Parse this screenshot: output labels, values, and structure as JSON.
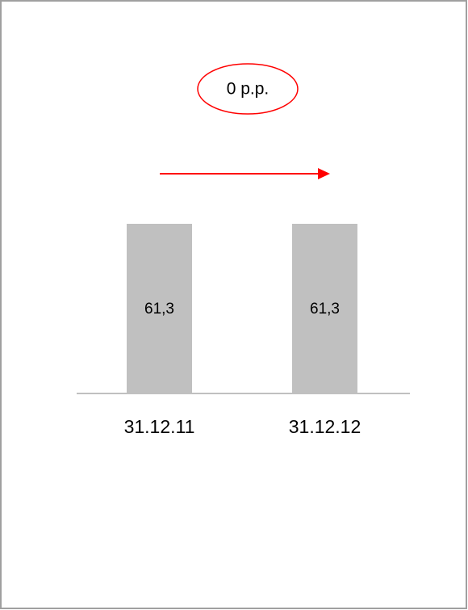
{
  "chart_data": {
    "type": "bar",
    "categories": [
      "31.12.11",
      "31.12.12"
    ],
    "values": [
      61.3,
      61.3
    ],
    "value_labels": [
      "61,3",
      "61,3"
    ],
    "color": "#c0c0c0",
    "annotation": "0 p.p.",
    "annotation_color": "#ff0000"
  }
}
